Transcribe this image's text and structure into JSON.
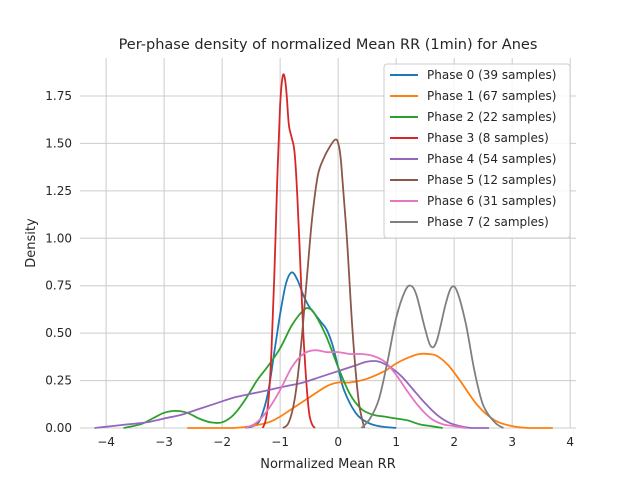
{
  "chart_data": {
    "type": "line",
    "title": "Per-phase density of normalized Mean RR (1min) for Anes",
    "xlabel": "Normalized Mean RR",
    "ylabel": "Density",
    "xlim": [
      -4.45,
      4.1
    ],
    "ylim": [
      0,
      1.95
    ],
    "xticks": [
      -4,
      -3,
      -2,
      -1,
      0,
      1,
      2,
      3,
      4
    ],
    "xtick_labels": [
      "−4",
      "−3",
      "−2",
      "−1",
      "0",
      "1",
      "2",
      "3",
      "4"
    ],
    "yticks": [
      0,
      0.25,
      0.5,
      0.75,
      1.0,
      1.25,
      1.5,
      1.75
    ],
    "ytick_labels": [
      "0.00",
      "0.25",
      "0.50",
      "0.75",
      "1.00",
      "1.25",
      "1.50",
      "1.75"
    ],
    "grid": true,
    "legend_position": "top-right",
    "series": [
      {
        "name": "Phase 0 (39 samples)",
        "color": "#1f77b4",
        "x": [
          -1.6,
          -1.4,
          -1.3,
          -1.2,
          -1.1,
          -1.0,
          -0.9,
          -0.8,
          -0.7,
          -0.6,
          -0.5,
          -0.4,
          -0.3,
          -0.2,
          -0.1,
          0.0,
          0.1,
          0.3,
          0.5,
          0.7,
          1.0
        ],
        "y": [
          0.0,
          0.02,
          0.08,
          0.2,
          0.4,
          0.6,
          0.76,
          0.82,
          0.78,
          0.7,
          0.64,
          0.6,
          0.56,
          0.52,
          0.44,
          0.32,
          0.2,
          0.08,
          0.03,
          0.01,
          0.0
        ]
      },
      {
        "name": "Phase 1 (67 samples)",
        "color": "#ff7f0e",
        "x": [
          -2.6,
          -2.2,
          -1.8,
          -1.5,
          -1.2,
          -1.0,
          -0.8,
          -0.5,
          -0.2,
          0.0,
          0.2,
          0.5,
          0.8,
          1.0,
          1.2,
          1.4,
          1.55,
          1.7,
          1.9,
          2.1,
          2.4,
          2.7,
          3.0,
          3.3,
          3.7
        ],
        "y": [
          0.0,
          0.0,
          0.0,
          0.01,
          0.03,
          0.06,
          0.1,
          0.16,
          0.22,
          0.24,
          0.24,
          0.26,
          0.3,
          0.34,
          0.37,
          0.39,
          0.39,
          0.38,
          0.33,
          0.25,
          0.12,
          0.04,
          0.01,
          0.0,
          0.0
        ]
      },
      {
        "name": "Phase 2 (22 samples)",
        "color": "#2ca02c",
        "x": [
          -3.7,
          -3.4,
          -3.2,
          -3.0,
          -2.8,
          -2.6,
          -2.4,
          -2.2,
          -2.0,
          -1.8,
          -1.6,
          -1.4,
          -1.2,
          -1.0,
          -0.8,
          -0.6,
          -0.5,
          -0.4,
          -0.2,
          0.0,
          0.2,
          0.4,
          0.6,
          0.8,
          1.0,
          1.2,
          1.4,
          1.6,
          1.8
        ],
        "y": [
          0.0,
          0.02,
          0.05,
          0.08,
          0.09,
          0.08,
          0.05,
          0.03,
          0.03,
          0.07,
          0.15,
          0.25,
          0.33,
          0.42,
          0.54,
          0.62,
          0.63,
          0.6,
          0.48,
          0.32,
          0.18,
          0.1,
          0.07,
          0.06,
          0.05,
          0.04,
          0.02,
          0.01,
          0.0
        ]
      },
      {
        "name": "Phase 3 (8 samples)",
        "color": "#d62728",
        "x": [
          -1.3,
          -1.25,
          -1.2,
          -1.15,
          -1.1,
          -1.05,
          -1.0,
          -0.95,
          -0.9,
          -0.85,
          -0.8,
          -0.75,
          -0.7,
          -0.65,
          -0.6,
          -0.55,
          -0.5,
          -0.45,
          -0.4
        ],
        "y": [
          0.0,
          0.04,
          0.15,
          0.4,
          0.8,
          1.3,
          1.7,
          1.86,
          1.8,
          1.6,
          1.53,
          1.45,
          1.2,
          0.85,
          0.5,
          0.25,
          0.08,
          0.02,
          0.0
        ]
      },
      {
        "name": "Phase 4 (54 samples)",
        "color": "#9467bd",
        "x": [
          -4.2,
          -3.9,
          -3.6,
          -3.3,
          -3.0,
          -2.7,
          -2.4,
          -2.1,
          -1.8,
          -1.5,
          -1.2,
          -0.9,
          -0.6,
          -0.3,
          0.0,
          0.3,
          0.5,
          0.7,
          0.9,
          1.1,
          1.3,
          1.5,
          1.7,
          1.9,
          2.1,
          2.3,
          2.6
        ],
        "y": [
          0.0,
          0.01,
          0.02,
          0.03,
          0.05,
          0.07,
          0.1,
          0.13,
          0.16,
          0.18,
          0.2,
          0.22,
          0.24,
          0.27,
          0.3,
          0.33,
          0.35,
          0.35,
          0.32,
          0.27,
          0.2,
          0.13,
          0.07,
          0.03,
          0.01,
          0.0,
          0.0
        ]
      },
      {
        "name": "Phase 5 (12 samples)",
        "color": "#8c564b",
        "x": [
          -0.95,
          -0.85,
          -0.75,
          -0.65,
          -0.55,
          -0.45,
          -0.35,
          -0.25,
          -0.15,
          -0.05,
          0.0,
          0.05,
          0.15,
          0.25,
          0.35,
          0.45
        ],
        "y": [
          0.0,
          0.03,
          0.15,
          0.4,
          0.75,
          1.1,
          1.33,
          1.42,
          1.48,
          1.52,
          1.5,
          1.4,
          1.0,
          0.5,
          0.15,
          0.0
        ]
      },
      {
        "name": "Phase 6 (31 samples)",
        "color": "#e377c2",
        "x": [
          -1.6,
          -1.4,
          -1.2,
          -1.0,
          -0.8,
          -0.6,
          -0.4,
          -0.2,
          0.0,
          0.2,
          0.4,
          0.6,
          0.8,
          1.0,
          1.2,
          1.4,
          1.6,
          1.8,
          2.0,
          2.2
        ],
        "y": [
          0.0,
          0.03,
          0.1,
          0.2,
          0.32,
          0.39,
          0.41,
          0.4,
          0.4,
          0.39,
          0.39,
          0.38,
          0.35,
          0.28,
          0.19,
          0.11,
          0.05,
          0.02,
          0.01,
          0.0
        ]
      },
      {
        "name": "Phase 7 (2 samples)",
        "color": "#7f7f7f",
        "x": [
          0.4,
          0.55,
          0.7,
          0.85,
          1.0,
          1.15,
          1.25,
          1.35,
          1.5,
          1.6,
          1.7,
          1.85,
          1.95,
          2.05,
          2.2,
          2.35,
          2.5,
          2.7,
          2.85
        ],
        "y": [
          0.0,
          0.05,
          0.15,
          0.35,
          0.58,
          0.72,
          0.75,
          0.7,
          0.52,
          0.43,
          0.46,
          0.65,
          0.74,
          0.72,
          0.55,
          0.3,
          0.12,
          0.03,
          0.0
        ]
      }
    ]
  }
}
